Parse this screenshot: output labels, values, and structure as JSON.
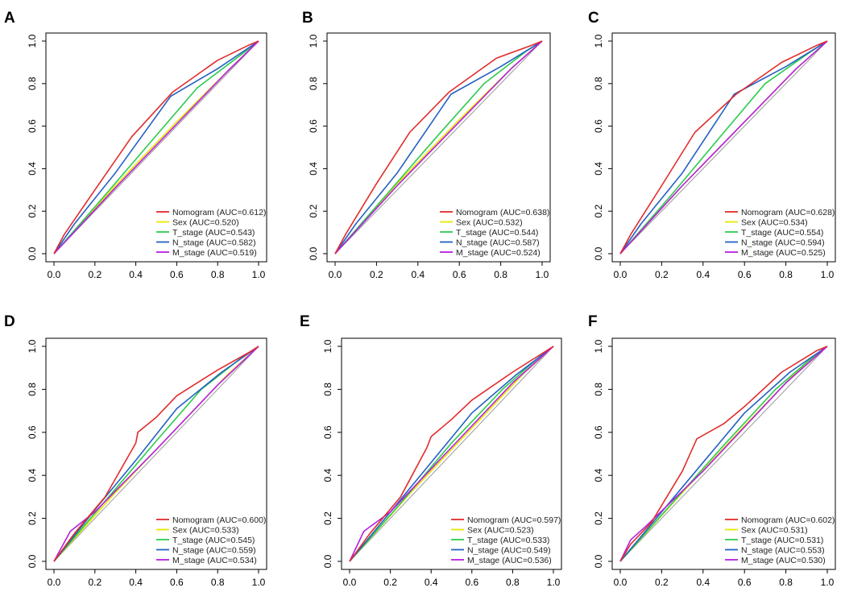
{
  "figure": {
    "panel_count": 6
  },
  "chart_data": [
    {
      "type": "line",
      "panel_label": "A",
      "xlim": [
        0,
        1
      ],
      "ylim": [
        0,
        1
      ],
      "x_ticks": [
        "0.0",
        "0.2",
        "0.4",
        "0.6",
        "0.8",
        "1.0"
      ],
      "y_ticks": [
        "0.0",
        "0.2",
        "0.4",
        "0.6",
        "0.8",
        "1.0"
      ],
      "legend_position": "bottom-right",
      "series": [
        {
          "name": "Nomogram (AUC=0.612)",
          "color": "#e32b2b",
          "points": [
            [
              0,
              0
            ],
            [
              0.05,
              0.09
            ],
            [
              0.2,
              0.3
            ],
            [
              0.38,
              0.55
            ],
            [
              0.58,
              0.76
            ],
            [
              0.8,
              0.91
            ],
            [
              0.95,
              0.98
            ],
            [
              1,
              1
            ]
          ]
        },
        {
          "name": "Sex (AUC=0.520)",
          "color": "#e6e600",
          "points": [
            [
              0,
              0
            ],
            [
              0.3,
              0.32
            ],
            [
              0.6,
              0.62
            ],
            [
              0.85,
              0.86
            ],
            [
              1,
              1
            ]
          ]
        },
        {
          "name": "T_stage (AUC=0.543)",
          "color": "#2ccb4d",
          "points": [
            [
              0,
              0
            ],
            [
              0.2,
              0.22
            ],
            [
              0.45,
              0.5
            ],
            [
              0.7,
              0.78
            ],
            [
              0.92,
              0.94
            ],
            [
              1,
              1
            ]
          ]
        },
        {
          "name": "N_stage (AUC=0.582)",
          "color": "#2461c4",
          "points": [
            [
              0,
              0
            ],
            [
              0.1,
              0.14
            ],
            [
              0.3,
              0.38
            ],
            [
              0.57,
              0.74
            ],
            [
              0.8,
              0.87
            ],
            [
              1,
              1
            ]
          ]
        },
        {
          "name": "M_stage (AUC=0.519)",
          "color": "#b71ee0",
          "points": [
            [
              0,
              0
            ],
            [
              0.3,
              0.31
            ],
            [
              0.6,
              0.61
            ],
            [
              0.85,
              0.86
            ],
            [
              1,
              1
            ]
          ]
        }
      ]
    },
    {
      "type": "line",
      "panel_label": "B",
      "xlim": [
        0,
        1
      ],
      "ylim": [
        0,
        1
      ],
      "x_ticks": [
        "0.0",
        "0.2",
        "0.4",
        "0.6",
        "0.8",
        "1.0"
      ],
      "y_ticks": [
        "0.0",
        "0.2",
        "0.4",
        "0.6",
        "0.8",
        "1.0"
      ],
      "legend_position": "bottom-right",
      "series": [
        {
          "name": "Nomogram (AUC=0.638)",
          "color": "#e32b2b",
          "points": [
            [
              0,
              0
            ],
            [
              0.05,
              0.09
            ],
            [
              0.2,
              0.33
            ],
            [
              0.36,
              0.57
            ],
            [
              0.55,
              0.76
            ],
            [
              0.78,
              0.92
            ],
            [
              0.95,
              0.98
            ],
            [
              1,
              1
            ]
          ]
        },
        {
          "name": "Sex (AUC=0.532)",
          "color": "#e6e600",
          "points": [
            [
              0,
              0
            ],
            [
              0.3,
              0.33
            ],
            [
              0.6,
              0.63
            ],
            [
              0.85,
              0.87
            ],
            [
              1,
              1
            ]
          ]
        },
        {
          "name": "T_stage (AUC=0.544)",
          "color": "#2ccb4d",
          "points": [
            [
              0,
              0
            ],
            [
              0.25,
              0.28
            ],
            [
              0.5,
              0.56
            ],
            [
              0.72,
              0.8
            ],
            [
              0.92,
              0.95
            ],
            [
              1,
              1
            ]
          ]
        },
        {
          "name": "N_stage (AUC=0.587)",
          "color": "#2461c4",
          "points": [
            [
              0,
              0
            ],
            [
              0.1,
              0.14
            ],
            [
              0.3,
              0.38
            ],
            [
              0.56,
              0.75
            ],
            [
              0.8,
              0.88
            ],
            [
              1,
              1
            ]
          ]
        },
        {
          "name": "M_stage (AUC=0.524)",
          "color": "#b71ee0",
          "points": [
            [
              0,
              0
            ],
            [
              0.3,
              0.32
            ],
            [
              0.6,
              0.62
            ],
            [
              0.85,
              0.87
            ],
            [
              1,
              1
            ]
          ]
        }
      ]
    },
    {
      "type": "line",
      "panel_label": "C",
      "xlim": [
        0,
        1
      ],
      "ylim": [
        0,
        1
      ],
      "x_ticks": [
        "0.0",
        "0.2",
        "0.4",
        "0.6",
        "0.8",
        "1.0"
      ],
      "y_ticks": [
        "0.0",
        "0.2",
        "0.4",
        "0.6",
        "0.8",
        "1.0"
      ],
      "legend_position": "bottom-right",
      "series": [
        {
          "name": "Nomogram (AUC=0.628)",
          "color": "#e32b2b",
          "points": [
            [
              0,
              0
            ],
            [
              0.05,
              0.09
            ],
            [
              0.2,
              0.32
            ],
            [
              0.36,
              0.57
            ],
            [
              0.56,
              0.75
            ],
            [
              0.78,
              0.9
            ],
            [
              0.95,
              0.98
            ],
            [
              1,
              1
            ]
          ]
        },
        {
          "name": "Sex (AUC=0.534)",
          "color": "#e6e600",
          "points": [
            [
              0,
              0
            ],
            [
              0.3,
              0.32
            ],
            [
              0.6,
              0.62
            ],
            [
              0.85,
              0.87
            ],
            [
              1,
              1
            ]
          ]
        },
        {
          "name": "T_stage (AUC=0.554)",
          "color": "#2ccb4d",
          "points": [
            [
              0,
              0
            ],
            [
              0.25,
              0.28
            ],
            [
              0.5,
              0.57
            ],
            [
              0.7,
              0.8
            ],
            [
              0.92,
              0.95
            ],
            [
              1,
              1
            ]
          ]
        },
        {
          "name": "N_stage (AUC=0.594)",
          "color": "#2461c4",
          "points": [
            [
              0,
              0
            ],
            [
              0.1,
              0.14
            ],
            [
              0.3,
              0.38
            ],
            [
              0.55,
              0.75
            ],
            [
              0.8,
              0.88
            ],
            [
              1,
              1
            ]
          ]
        },
        {
          "name": "M_stage (AUC=0.525)",
          "color": "#b71ee0",
          "points": [
            [
              0,
              0
            ],
            [
              0.3,
              0.32
            ],
            [
              0.6,
              0.62
            ],
            [
              0.85,
              0.87
            ],
            [
              1,
              1
            ]
          ]
        }
      ]
    },
    {
      "type": "line",
      "panel_label": "D",
      "xlim": [
        0,
        1
      ],
      "ylim": [
        0,
        1
      ],
      "x_ticks": [
        "0.0",
        "0.2",
        "0.4",
        "0.6",
        "0.8",
        "1.0"
      ],
      "y_ticks": [
        "0.0",
        "0.2",
        "0.4",
        "0.6",
        "0.8",
        "1.0"
      ],
      "legend_position": "bottom-right",
      "series": [
        {
          "name": "Nomogram (AUC=0.600)",
          "color": "#e32b2b",
          "points": [
            [
              0,
              0
            ],
            [
              0.1,
              0.13
            ],
            [
              0.25,
              0.3
            ],
            [
              0.4,
              0.55
            ],
            [
              0.41,
              0.6
            ],
            [
              0.5,
              0.67
            ],
            [
              0.6,
              0.77
            ],
            [
              0.8,
              0.89
            ],
            [
              0.95,
              0.97
            ],
            [
              1,
              1
            ]
          ]
        },
        {
          "name": "Sex (AUC=0.533)",
          "color": "#e6e600",
          "points": [
            [
              0,
              0
            ],
            [
              0.3,
              0.32
            ],
            [
              0.6,
              0.62
            ],
            [
              0.85,
              0.87
            ],
            [
              1,
              1
            ]
          ]
        },
        {
          "name": "T_stage (AUC=0.545)",
          "color": "#2ccb4d",
          "points": [
            [
              0,
              0
            ],
            [
              0.25,
              0.28
            ],
            [
              0.5,
              0.56
            ],
            [
              0.72,
              0.8
            ],
            [
              0.92,
              0.95
            ],
            [
              1,
              1
            ]
          ]
        },
        {
          "name": "N_stage (AUC=0.559)",
          "color": "#2461c4",
          "points": [
            [
              0,
              0
            ],
            [
              0.2,
              0.24
            ],
            [
              0.4,
              0.47
            ],
            [
              0.6,
              0.71
            ],
            [
              0.82,
              0.88
            ],
            [
              1,
              1
            ]
          ]
        },
        {
          "name": "M_stage (AUC=0.534)",
          "color": "#b71ee0",
          "points": [
            [
              0,
              0
            ],
            [
              0.08,
              0.14
            ],
            [
              0.2,
              0.23
            ],
            [
              0.5,
              0.52
            ],
            [
              0.8,
              0.82
            ],
            [
              1,
              1
            ]
          ]
        }
      ]
    },
    {
      "type": "line",
      "panel_label": "E",
      "xlim": [
        0,
        1
      ],
      "ylim": [
        0,
        1
      ],
      "x_ticks": [
        "0.0",
        "0.2",
        "0.4",
        "0.6",
        "0.8",
        "1.0"
      ],
      "y_ticks": [
        "0.0",
        "0.2",
        "0.4",
        "0.6",
        "0.8",
        "1.0"
      ],
      "legend_position": "bottom-right",
      "series": [
        {
          "name": "Nomogram (AUC=0.597)",
          "color": "#e32b2b",
          "points": [
            [
              0,
              0
            ],
            [
              0.1,
              0.13
            ],
            [
              0.25,
              0.3
            ],
            [
              0.38,
              0.53
            ],
            [
              0.4,
              0.58
            ],
            [
              0.5,
              0.66
            ],
            [
              0.6,
              0.75
            ],
            [
              0.8,
              0.88
            ],
            [
              0.95,
              0.97
            ],
            [
              1,
              1
            ]
          ]
        },
        {
          "name": "Sex (AUC=0.523)",
          "color": "#e6e600",
          "points": [
            [
              0,
              0
            ],
            [
              0.3,
              0.32
            ],
            [
              0.6,
              0.62
            ],
            [
              0.85,
              0.87
            ],
            [
              1,
              1
            ]
          ]
        },
        {
          "name": "T_stage (AUC=0.533)",
          "color": "#2ccb4d",
          "points": [
            [
              0,
              0
            ],
            [
              0.25,
              0.27
            ],
            [
              0.5,
              0.55
            ],
            [
              0.75,
              0.8
            ],
            [
              0.93,
              0.95
            ],
            [
              1,
              1
            ]
          ]
        },
        {
          "name": "N_stage (AUC=0.549)",
          "color": "#2461c4",
          "points": [
            [
              0,
              0
            ],
            [
              0.2,
              0.23
            ],
            [
              0.4,
              0.46
            ],
            [
              0.6,
              0.69
            ],
            [
              0.82,
              0.87
            ],
            [
              1,
              1
            ]
          ]
        },
        {
          "name": "M_stage (AUC=0.536)",
          "color": "#b71ee0",
          "points": [
            [
              0,
              0
            ],
            [
              0.07,
              0.14
            ],
            [
              0.2,
              0.23
            ],
            [
              0.5,
              0.53
            ],
            [
              0.8,
              0.83
            ],
            [
              1,
              1
            ]
          ]
        }
      ]
    },
    {
      "type": "line",
      "panel_label": "F",
      "xlim": [
        0,
        1
      ],
      "ylim": [
        0,
        1
      ],
      "x_ticks": [
        "0.0",
        "0.2",
        "0.4",
        "0.6",
        "0.8",
        "1.0"
      ],
      "y_ticks": [
        "0.0",
        "0.2",
        "0.4",
        "0.6",
        "0.8",
        "1.0"
      ],
      "legend_position": "bottom-right",
      "series": [
        {
          "name": "Nomogram (AUC=0.602)",
          "color": "#e32b2b",
          "points": [
            [
              0,
              0
            ],
            [
              0.05,
              0.08
            ],
            [
              0.15,
              0.18
            ],
            [
              0.3,
              0.42
            ],
            [
              0.37,
              0.57
            ],
            [
              0.5,
              0.64
            ],
            [
              0.6,
              0.72
            ],
            [
              0.78,
              0.88
            ],
            [
              0.95,
              0.98
            ],
            [
              1,
              1
            ]
          ]
        },
        {
          "name": "Sex (AUC=0.531)",
          "color": "#e6e600",
          "points": [
            [
              0,
              0
            ],
            [
              0.3,
              0.32
            ],
            [
              0.6,
              0.63
            ],
            [
              0.85,
              0.88
            ],
            [
              1,
              1
            ]
          ]
        },
        {
          "name": "T_stage (AUC=0.531)",
          "color": "#2ccb4d",
          "points": [
            [
              0,
              0
            ],
            [
              0.25,
              0.27
            ],
            [
              0.5,
              0.54
            ],
            [
              0.75,
              0.8
            ],
            [
              0.93,
              0.95
            ],
            [
              1,
              1
            ]
          ]
        },
        {
          "name": "N_stage (AUC=0.553)",
          "color": "#2461c4",
          "points": [
            [
              0,
              0
            ],
            [
              0.2,
              0.23
            ],
            [
              0.4,
              0.46
            ],
            [
              0.6,
              0.69
            ],
            [
              0.82,
              0.88
            ],
            [
              1,
              1
            ]
          ]
        },
        {
          "name": "M_stage (AUC=0.530)",
          "color": "#b71ee0",
          "points": [
            [
              0,
              0
            ],
            [
              0.05,
              0.1
            ],
            [
              0.12,
              0.16
            ],
            [
              0.4,
              0.42
            ],
            [
              0.8,
              0.83
            ],
            [
              1,
              1
            ]
          ]
        }
      ]
    }
  ]
}
